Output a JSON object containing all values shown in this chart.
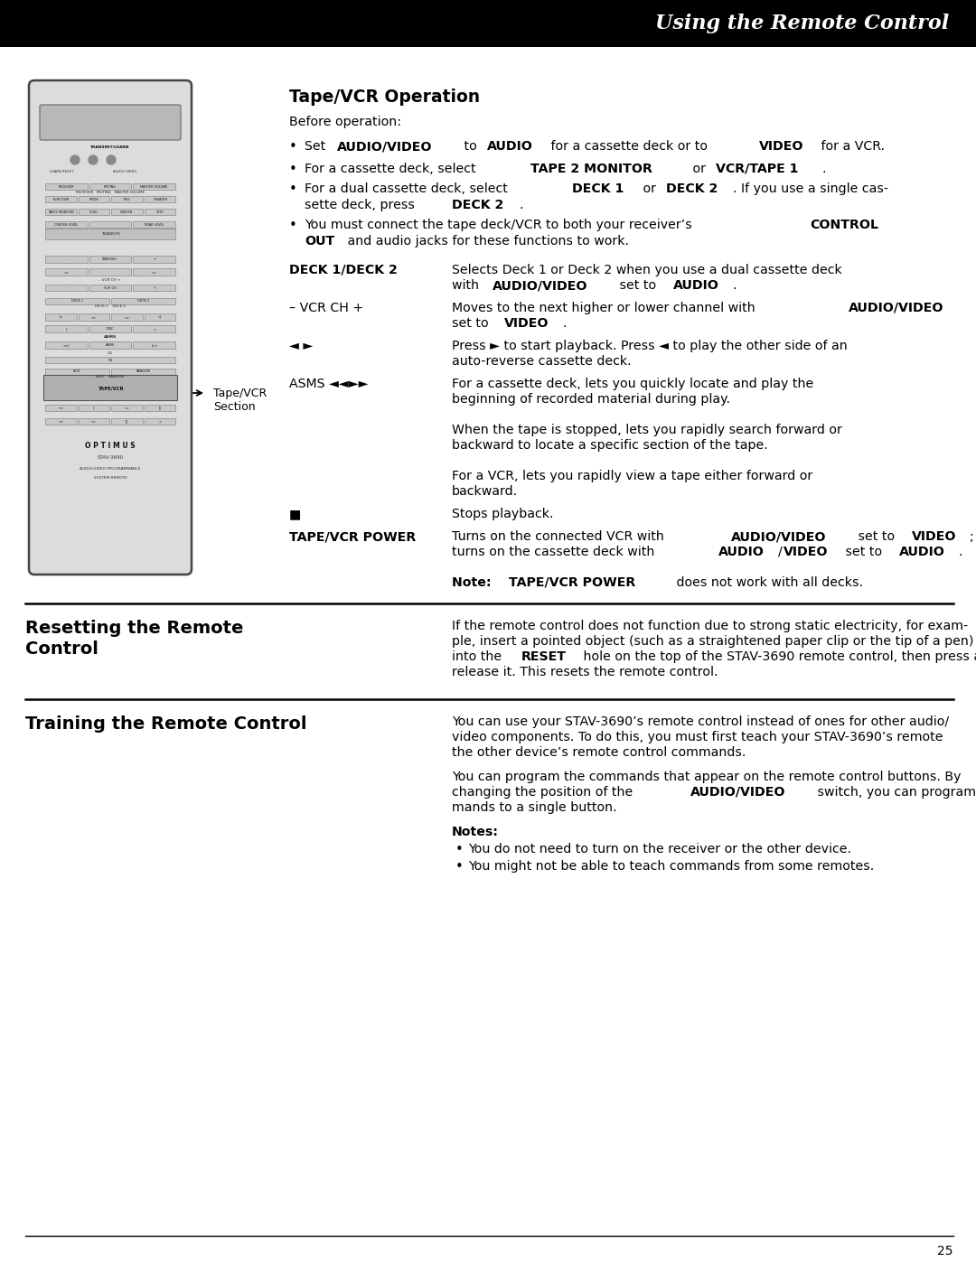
{
  "header_bg": "#000000",
  "header_text": "Using the Remote Control",
  "header_text_color": "#ffffff",
  "page_bg": "#ffffff",
  "page_number": "25",
  "section_title": "Tape/VCR Operation",
  "before_op": "Before operation:",
  "tapvcr_label": "Tape/VCR\nSection",
  "notes_bullets": [
    "You do not need to turn on the receiver or the other device.",
    "You might not be able to teach commands from some remotes."
  ]
}
